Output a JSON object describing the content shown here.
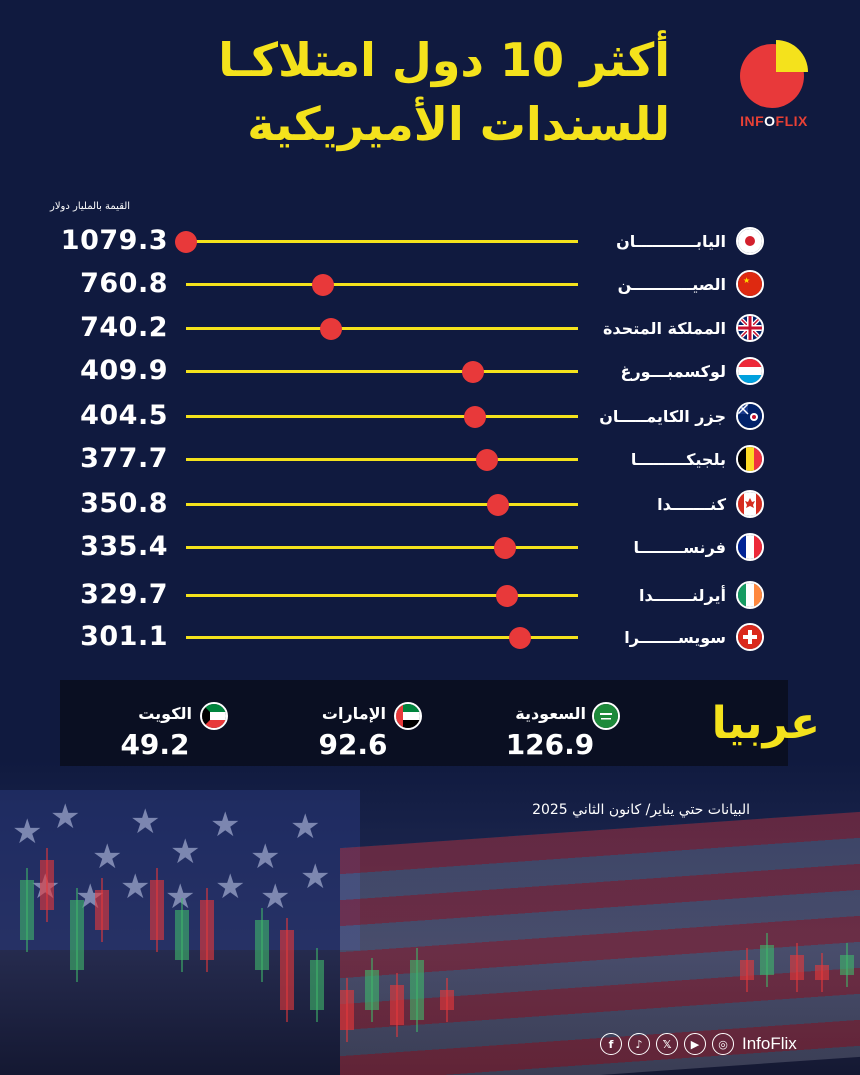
{
  "header": {
    "title_line1": "أكثر 10 دول امتلاكـا",
    "title_line2": "للسندات الأميريكية",
    "logo_text_left": "INF",
    "logo_text_o": "O",
    "logo_text_right": "FLIX",
    "logo_colors": {
      "red": "#e8393a",
      "yellow": "#f4e21c"
    }
  },
  "unit_label": "القيمة بالمليار دولار",
  "chart_data": {
    "type": "scatter",
    "title": "أكثر 10 دول امتلاكـا للسندات الأميريكية",
    "subtitle": "القيمة بالمليار دولار",
    "categories": [
      "اليابـــــــــــان",
      "الصيـــــــــــن",
      "المملكة المتحدة",
      "لوكسمبـــورغ",
      "جزر الكايمـــــان",
      "بلجيكـــــــــا",
      "كنـــــــدا",
      "فرنســــــــا",
      "أيرلنـــــــدا",
      "سويســـــــرا"
    ],
    "values": [
      1079.3,
      760.8,
      740.2,
      409.9,
      404.5,
      377.7,
      350.8,
      335.4,
      329.7,
      301.1
    ],
    "value_labels": [
      "1079.3",
      "760.8",
      "740.2",
      "409.9",
      "404.5",
      "377.7",
      "350.8",
      "335.4",
      "329.7",
      "301.1"
    ],
    "flags": [
      "japan-flag-icon",
      "china-flag-icon",
      "uk-flag-icon",
      "luxembourg-flag-icon",
      "cayman-flag-icon",
      "belgium-flag-icon",
      "canada-flag-icon",
      "france-flag-icon",
      "ireland-flag-icon",
      "switzerland-flag-icon"
    ],
    "xlim": [
      0,
      1079.3
    ],
    "direction": "right-to-left",
    "colors": {
      "line": "#f4e21c",
      "dot": "#e8393a"
    }
  },
  "arab": {
    "title": "عربيا",
    "items": [
      {
        "name": "السعودية",
        "value": "126.9",
        "flag": "saudi-flag-icon"
      },
      {
        "name": "الإمارات",
        "value": "92.6",
        "flag": "uae-flag-icon"
      },
      {
        "name": "الكويت",
        "value": "49.2",
        "flag": "kuwait-flag-icon"
      }
    ]
  },
  "footer": {
    "note": "البيانات حتي يناير/ كانون الثاني 2025",
    "handle": "InfoFlix",
    "socials": [
      "facebook-icon",
      "tiktok-icon",
      "x-icon",
      "youtube-icon",
      "instagram-icon"
    ]
  }
}
